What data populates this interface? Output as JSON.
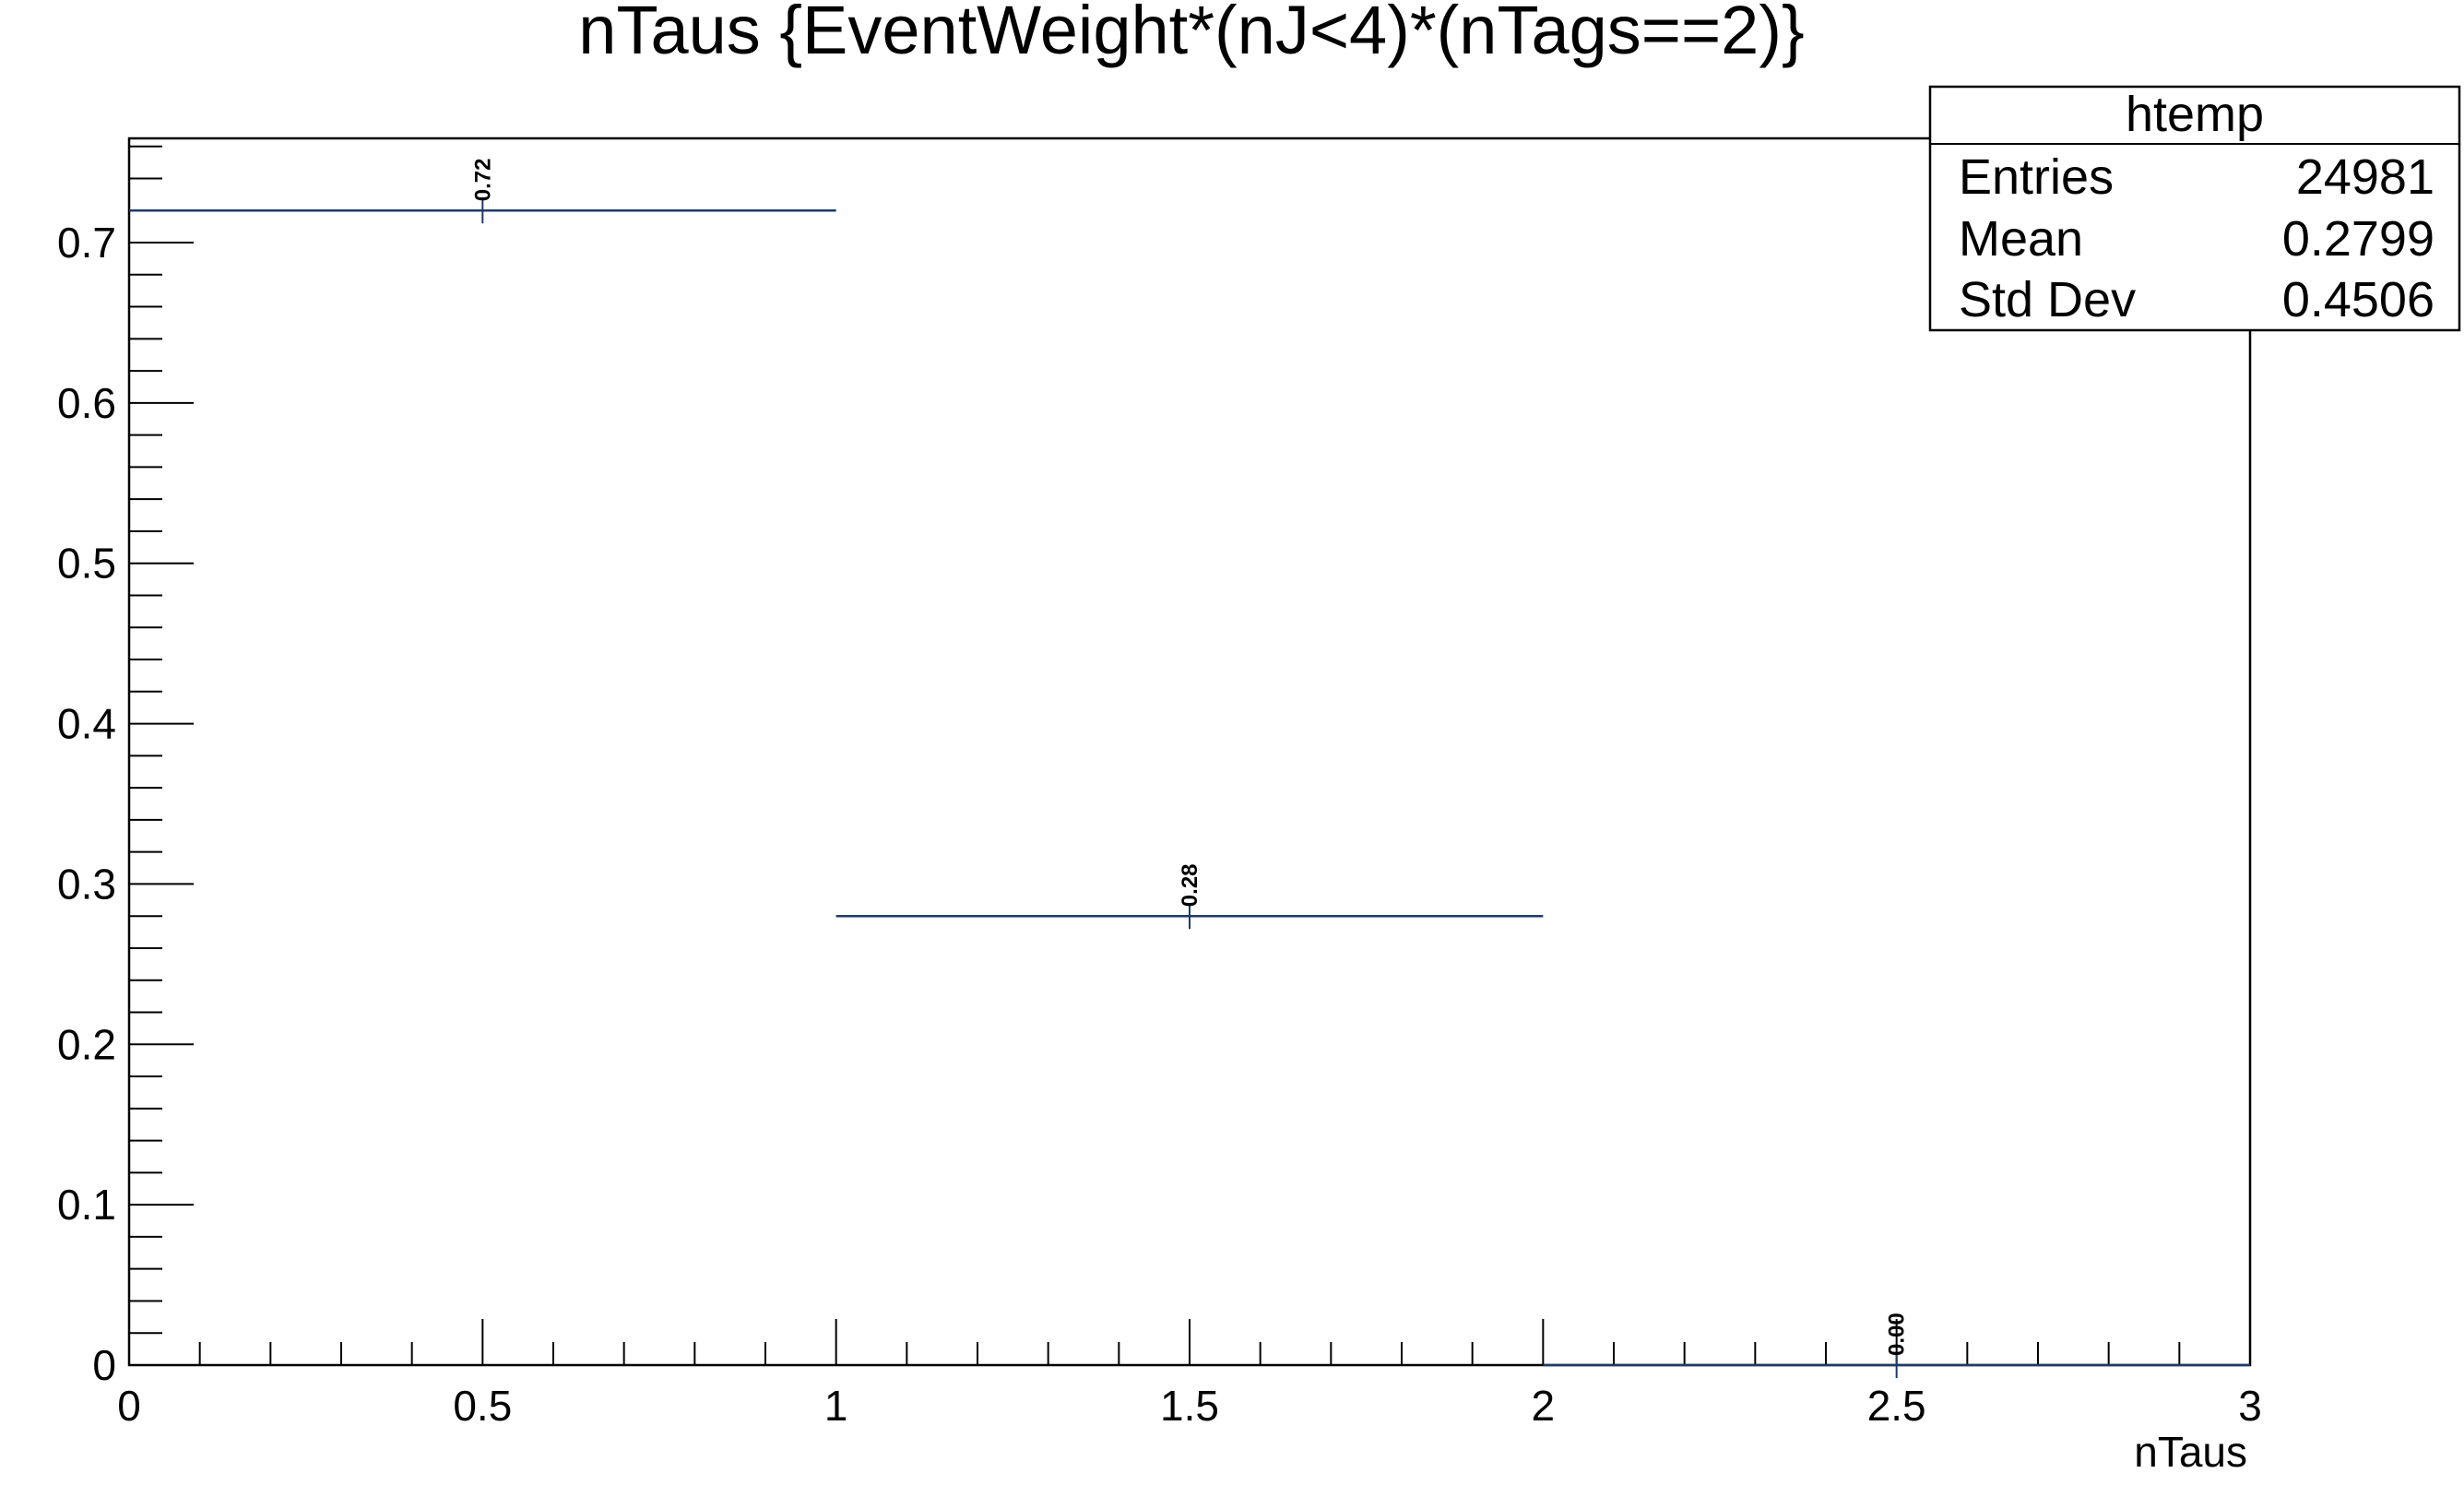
{
  "chart_data": {
    "type": "histogram",
    "title": "nTaus {EventWeight*(nJ<4)*(nTags==2)}",
    "xlabel": "nTaus",
    "ylabel": "",
    "xlim": [
      0,
      3
    ],
    "ylim": [
      0,
      0.765
    ],
    "x_ticks": [
      "0",
      "0.5",
      "1",
      "1.5",
      "2",
      "2.5",
      "3"
    ],
    "y_ticks": [
      "0",
      "0.1",
      "0.2",
      "0.3",
      "0.4",
      "0.5",
      "0.6",
      "0.7"
    ],
    "bin_edges": [
      0,
      1,
      2,
      3
    ],
    "values": [
      0.72,
      0.28,
      0.0
    ],
    "value_labels": [
      "0.72",
      "0.28",
      "0.00"
    ],
    "line_color": "#1f3a6a",
    "grid": false,
    "legend": "none",
    "stats_box": {
      "name": "htemp",
      "placement": "top-right",
      "rows": [
        {
          "label": "Entries",
          "value": "24981"
        },
        {
          "label": "Mean",
          "value": "0.2799"
        },
        {
          "label": "Std Dev",
          "value": "0.4506"
        }
      ]
    }
  }
}
